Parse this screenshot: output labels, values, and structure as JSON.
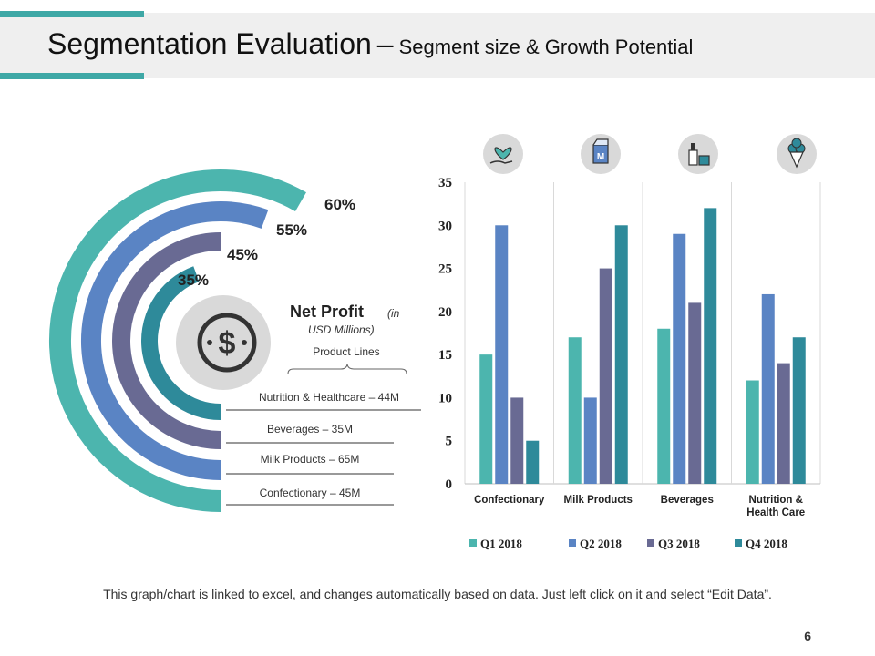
{
  "header": {
    "title": "Segmentation Evaluation",
    "dash": "–",
    "subtitle": "Segment size & Growth Potential"
  },
  "colors": {
    "teal_light": "#4cb5ae",
    "blue": "#5a84c4",
    "purple": "#696a93",
    "teal_dark": "#2e8a9a",
    "accent": "#3ea8a6",
    "icon_circle": "#d9d9d9"
  },
  "donut": {
    "center_icon": "dollar-coin-icon",
    "heading": "Net Profit",
    "heading_note": "(in",
    "heading_note2": "USD  Millions)",
    "subheading": "Product Lines",
    "rings": [
      {
        "label": "Confectionary – 45M",
        "percent": 60,
        "percent_label": "60%",
        "color": "#4cb5ae"
      },
      {
        "label": "Milk Products  – 65M",
        "percent": 55,
        "percent_label": "55%",
        "color": "#5a84c4"
      },
      {
        "label": "Beverages  – 35M",
        "percent": 45,
        "percent_label": "45%",
        "color": "#696a93"
      },
      {
        "label": "Nutrition & Healthcare – 44M",
        "percent": 35,
        "percent_label": "35%",
        "color": "#2e8a9a"
      }
    ]
  },
  "chart_data": {
    "type": "bar",
    "title": "",
    "xlabel": "",
    "ylabel": "",
    "ylim": [
      0,
      35
    ],
    "yticks": [
      0,
      5,
      10,
      15,
      20,
      25,
      30,
      35
    ],
    "categories": [
      "Confectionary",
      "Milk Products",
      "Beverages",
      "Nutrition & Health Care"
    ],
    "category_lines": [
      [
        "Confectionary"
      ],
      [
        "Milk Products"
      ],
      [
        "Beverages"
      ],
      [
        "Nutrition &",
        "Health Care"
      ]
    ],
    "category_icons": [
      "heart-hand-icon",
      "milk-carton-icon",
      "bottle-icon",
      "ice-cream-icon"
    ],
    "series": [
      {
        "name": "Q1 2018",
        "color": "#4cb5ae",
        "values": [
          15,
          17,
          18,
          12
        ]
      },
      {
        "name": "Q2 2018",
        "color": "#5a84c4",
        "values": [
          30,
          10,
          29,
          22
        ]
      },
      {
        "name": "Q3 2018",
        "color": "#696a93",
        "values": [
          10,
          25,
          21,
          14
        ]
      },
      {
        "name": "Q4 2018",
        "color": "#2e8a9a",
        "values": [
          5,
          30,
          32,
          17
        ]
      }
    ],
    "legend_position": "bottom"
  },
  "footer": {
    "note": "This graph/chart is linked to excel, and changes automatically  based on data.  Just left click on it and select “Edit Data”.",
    "page_number": "6"
  }
}
